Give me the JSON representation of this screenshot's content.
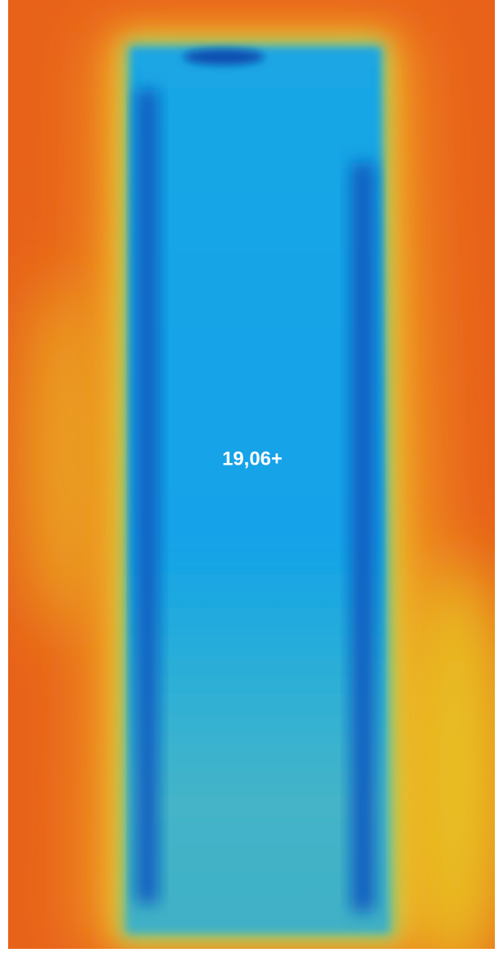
{
  "measurement": {
    "label": "19,06+"
  }
}
